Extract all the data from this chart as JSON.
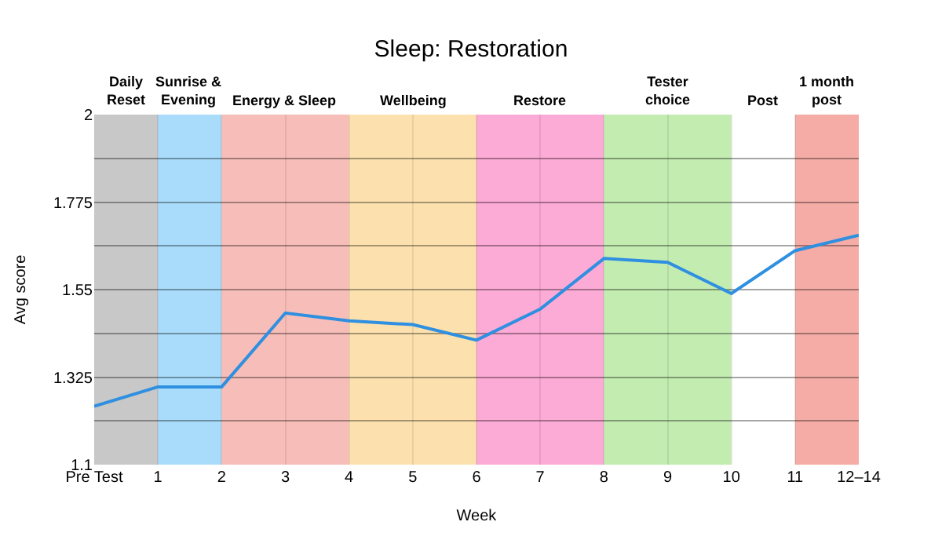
{
  "chart_data": {
    "type": "line",
    "title": "Sleep: Restoration",
    "xlabel": "Week",
    "ylabel": "Avg score",
    "x": [
      0,
      1,
      2,
      3,
      4,
      5,
      6,
      7,
      8,
      9,
      10,
      11,
      12
    ],
    "series": [
      {
        "color": "#2f8fe0",
        "values": [
          1.25,
          1.3,
          1.3,
          1.49,
          1.47,
          1.46,
          1.42,
          1.5,
          1.63,
          1.62,
          1.54,
          1.65,
          1.69
        ]
      }
    ],
    "xlim": [
      0,
      12
    ],
    "xticks": [
      {
        "value": 0,
        "label": "Pre Test"
      },
      1,
      2,
      3,
      4,
      5,
      6,
      7,
      8,
      9,
      10,
      11,
      {
        "value": 12,
        "label": "12–14"
      }
    ],
    "ylim": [
      1.1,
      2
    ],
    "yticks": [
      1.1,
      {
        "value": 1.2125,
        "label": null
      },
      1.325,
      {
        "value": 1.4375,
        "label": null
      },
      1.55,
      {
        "value": 1.6625,
        "label": null
      },
      1.775,
      {
        "value": 1.8875,
        "label": null
      },
      2
    ],
    "bands": [
      {
        "axis": "x",
        "from": 0,
        "to": 1,
        "label": "Daily\nReset",
        "color": "#c8c8c8"
      },
      {
        "axis": "x",
        "from": 1,
        "to": 2,
        "label": "Sunrise &\nEvening",
        "color": "#a8dcfa"
      },
      {
        "axis": "x",
        "from": 2,
        "to": 4,
        "label": "Energy & Sleep",
        "color": "#f7bdb8"
      },
      {
        "axis": "x",
        "from": 4,
        "to": 6,
        "label": "Wellbeing",
        "color": "#fce1ae"
      },
      {
        "axis": "x",
        "from": 6,
        "to": 8,
        "label": "Restore",
        "color": "#fcaad6"
      },
      {
        "axis": "x",
        "from": 8,
        "to": 10,
        "label": "Tester\nchoice",
        "color": "#c3ecb0"
      },
      {
        "axis": "x",
        "from": 10,
        "to": 11,
        "label": "Post",
        "color": "#ffffff"
      },
      {
        "axis": "x",
        "from": 11,
        "to": 12,
        "label": "1 month\npost",
        "color": "#f5aca6"
      }
    ],
    "grid": true,
    "legend": false,
    "marker": "none",
    "line_style": "solid"
  }
}
